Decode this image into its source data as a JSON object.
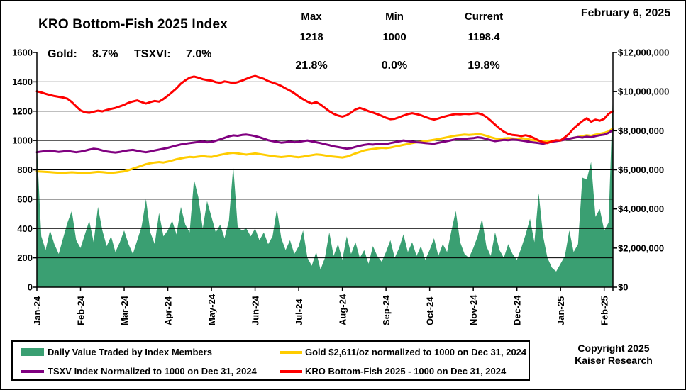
{
  "window": {
    "date": "February 6, 2025"
  },
  "header": {
    "title": "KRO Bottom-Fish 2025 Index",
    "gold_label": "Gold:",
    "gold_value": "8.7%",
    "tsxvi_label": "TSXVI:",
    "tsxvi_value": "7.0%",
    "stats": {
      "columns": [
        "Max",
        "Min",
        "Current"
      ],
      "values": [
        "1218",
        "1000",
        "1198.4"
      ],
      "percents": [
        "21.8%",
        "0.0%",
        "19.8%"
      ]
    }
  },
  "footer": {
    "copyright_line1": "Copyright 2025",
    "copyright_line2": "Kaiser Research"
  },
  "chart_data": {
    "type": "area+line",
    "x_unit": "months since Jan 2024 (0 = Jan-24 tick), points every 0.1 month",
    "x_start": 0,
    "x_end": 13.2,
    "x_labels": [
      "Jan-24",
      "Feb-24",
      "Mar-24",
      "Apr-24",
      "May-24",
      "Jun-24",
      "Jul-24",
      "Aug-24",
      "Sep-24",
      "Oct-24",
      "Nov-24",
      "Dec-24",
      "Jan-25",
      "Feb-25"
    ],
    "left_axis": {
      "min": 0,
      "max": 1600,
      "step": 200,
      "labels": [
        "0",
        "200",
        "400",
        "600",
        "800",
        "1000",
        "1200",
        "1400",
        "1600"
      ]
    },
    "right_axis": {
      "min": 0,
      "max": 12000000,
      "step": 2000000,
      "labels": [
        "$0",
        "$2,000,000",
        "$4,000,000",
        "$6,000,000",
        "$8,000,000",
        "$10,000,000",
        "$12,000,000"
      ]
    },
    "gridlines_at": [
      200,
      400,
      600,
      800,
      1000,
      1200,
      1400
    ],
    "grid_color": "#000000",
    "series": [
      {
        "name": "Daily Value Traded by Index Members",
        "type": "area",
        "axis": "right",
        "color": "#3a9f72",
        "value_scale": 1000000,
        "values": [
          7.2,
          2.6,
          1.9,
          2.9,
          2.2,
          1.7,
          2.5,
          3.3,
          3.9,
          2.4,
          2.0,
          2.7,
          3.4,
          2.3,
          4.1,
          2.9,
          2.1,
          2.6,
          1.8,
          2.3,
          2.9,
          2.2,
          1.7,
          2.4,
          3.1,
          4.5,
          2.8,
          2.2,
          3.8,
          2.6,
          2.9,
          3.4,
          2.7,
          4.1,
          3.2,
          2.8,
          5.5,
          4.6,
          3.0,
          4.4,
          3.6,
          2.8,
          3.2,
          2.5,
          3.4,
          6.2,
          3.1,
          2.9,
          3.0,
          2.6,
          3.0,
          2.4,
          2.8,
          2.2,
          2.6,
          4.0,
          2.5,
          1.9,
          2.4,
          1.7,
          2.1,
          2.9,
          1.5,
          1.1,
          1.8,
          0.9,
          1.5,
          2.8,
          1.6,
          2.2,
          1.4,
          2.6,
          1.7,
          2.3,
          1.5,
          1.9,
          1.2,
          2.1,
          1.6,
          1.3,
          1.8,
          2.4,
          1.5,
          2.0,
          2.7,
          1.8,
          2.3,
          1.6,
          2.1,
          1.4,
          1.9,
          2.5,
          1.6,
          2.2,
          1.8,
          2.9,
          3.9,
          2.3,
          1.7,
          1.5,
          2.0,
          2.6,
          3.5,
          2.1,
          1.6,
          2.8,
          1.9,
          1.5,
          2.2,
          1.7,
          1.4,
          2.0,
          2.7,
          3.5,
          2.3,
          4.8,
          2.6,
          1.5,
          1.0,
          0.8,
          1.2,
          1.6,
          2.9,
          1.8,
          2.2,
          5.6,
          5.5,
          6.4,
          3.6,
          4.0,
          2.9,
          3.3,
          9.9
        ]
      },
      {
        "name": "Gold $2,611/oz normalized to 1000 on Dec 31, 2024",
        "type": "line",
        "axis": "left",
        "color": "#ffcc00",
        "value_scale": 1,
        "values": [
          790,
          788,
          786,
          784,
          782,
          780,
          779,
          781,
          783,
          781,
          779,
          778,
          780,
          783,
          786,
          784,
          781,
          779,
          782,
          786,
          790,
          798,
          808,
          818,
          828,
          838,
          845,
          850,
          853,
          850,
          856,
          864,
          872,
          878,
          884,
          888,
          886,
          890,
          893,
          890,
          888,
          895,
          902,
          908,
          913,
          916,
          912,
          908,
          904,
          908,
          912,
          908,
          903,
          898,
          894,
          890,
          887,
          890,
          893,
          889,
          886,
          890,
          895,
          900,
          905,
          903,
          898,
          893,
          890,
          887,
          884,
          890,
          900,
          912,
          922,
          932,
          938,
          942,
          946,
          950,
          948,
          952,
          958,
          964,
          970,
          976,
          982,
          988,
          992,
          996,
          1000,
          1005,
          1010,
          1016,
          1022,
          1028,
          1033,
          1037,
          1040,
          1038,
          1040,
          1044,
          1040,
          1032,
          1022,
          1014,
          1010,
          1014,
          1016,
          1014,
          1012,
          1016,
          1012,
          1006,
          1002,
          998,
          996,
          994,
          998,
          999,
          1000,
          1006,
          1012,
          1018,
          1024,
          1030,
          1036,
          1032,
          1040,
          1046,
          1052,
          1062,
          1082
        ]
      },
      {
        "name": "TSXV Index Normalized to 1000 on Dec 31, 2024",
        "type": "line",
        "axis": "left",
        "color": "#800080",
        "value_scale": 1,
        "values": [
          920,
          924,
          928,
          931,
          926,
          922,
          925,
          929,
          924,
          920,
          924,
          930,
          938,
          944,
          940,
          932,
          925,
          921,
          918,
          922,
          928,
          933,
          936,
          930,
          924,
          920,
          925,
          932,
          938,
          944,
          950,
          958,
          966,
          973,
          978,
          982,
          986,
          990,
          993,
          988,
          990,
          998,
          1008,
          1018,
          1028,
          1035,
          1032,
          1038,
          1040,
          1036,
          1030,
          1022,
          1012,
          1002,
          996,
          990,
          985,
          988,
          992,
          988,
          990,
          996,
          1000,
          994,
          988,
          982,
          975,
          968,
          960,
          955,
          950,
          944,
          948,
          956,
          964,
          970,
          974,
          972,
          976,
          974,
          976,
          982,
          988,
          994,
          1000,
          996,
          992,
          988,
          986,
          982,
          980,
          978,
          984,
          990,
          996,
          1002,
          1008,
          1012,
          1010,
          1014,
          1016,
          1022,
          1018,
          1010,
          1002,
          996,
          1000,
          1004,
          1002,
          1006,
          1004,
          1000,
          996,
          990,
          986,
          982,
          978,
          984,
          992,
          996,
          1000,
          1006,
          1012,
          1018,
          1024,
          1020,
          1026,
          1022,
          1030,
          1036,
          1040,
          1052,
          1072
        ]
      },
      {
        "name": "KRO Bottom-Fish 2025 - 1000 on Dec 31, 2024",
        "type": "line",
        "axis": "left",
        "color": "#ff0000",
        "value_scale": 1,
        "values": [
          1335,
          1328,
          1318,
          1310,
          1303,
          1298,
          1293,
          1285,
          1262,
          1232,
          1205,
          1192,
          1188,
          1196,
          1203,
          1199,
          1208,
          1215,
          1222,
          1232,
          1243,
          1258,
          1266,
          1273,
          1262,
          1252,
          1262,
          1270,
          1265,
          1283,
          1305,
          1330,
          1356,
          1388,
          1410,
          1428,
          1436,
          1428,
          1418,
          1412,
          1408,
          1398,
          1393,
          1403,
          1398,
          1390,
          1398,
          1408,
          1420,
          1432,
          1440,
          1430,
          1420,
          1405,
          1395,
          1385,
          1372,
          1355,
          1340,
          1322,
          1300,
          1282,
          1265,
          1252,
          1262,
          1245,
          1222,
          1200,
          1182,
          1170,
          1163,
          1172,
          1190,
          1212,
          1222,
          1212,
          1200,
          1190,
          1180,
          1168,
          1155,
          1145,
          1148,
          1158,
          1170,
          1180,
          1186,
          1180,
          1172,
          1160,
          1150,
          1142,
          1150,
          1160,
          1168,
          1175,
          1180,
          1178,
          1182,
          1180,
          1183,
          1186,
          1178,
          1160,
          1135,
          1108,
          1082,
          1060,
          1045,
          1038,
          1035,
          1030,
          1036,
          1028,
          1015,
          1000,
          988,
          982,
          995,
          1002,
          1000,
          1022,
          1048,
          1082,
          1108,
          1132,
          1152,
          1128,
          1142,
          1135,
          1148,
          1182,
          1199
        ]
      }
    ],
    "legend_position": "bottom",
    "plot_colors": {
      "green_area": "#3a9f72",
      "gold_line": "#ffcc00",
      "tsxv_line": "#800080",
      "kro_line": "#ff0000"
    }
  }
}
